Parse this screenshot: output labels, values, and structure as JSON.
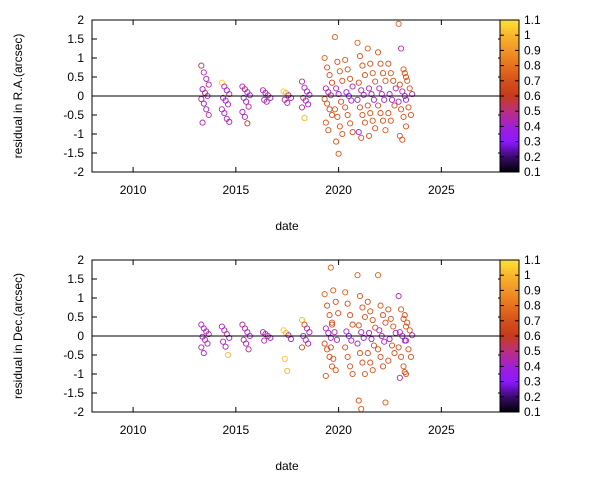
{
  "chart_data": [
    {
      "type": "scatter",
      "xlabel": "date",
      "ylabel": "residual in R.A.(arcsec)",
      "xlim": [
        2008,
        2028
      ],
      "ylim": [
        -2,
        2
      ],
      "x_ticks": [
        2010,
        2015,
        2020,
        2025
      ],
      "x_tick_labels": [
        "2010",
        "2015",
        "2020",
        "2025"
      ],
      "y_ticks": [
        -2,
        -1.5,
        -1,
        -0.5,
        0,
        0.5,
        1,
        1.5,
        2
      ],
      "y_tick_labels": [
        "-2",
        "-1.5",
        "-1",
        "-0.5",
        "0",
        "0.5",
        "1",
        "1.5",
        "2"
      ],
      "colorbar": {
        "range": [
          0.1,
          1.1
        ],
        "tick_values": [
          0.1,
          0.2,
          0.3,
          0.4,
          0.5,
          0.6,
          0.7,
          0.8,
          0.9,
          1,
          1.1
        ],
        "tick_labels": [
          "0.1",
          "0.2",
          "0.3",
          "0.4",
          "0.5",
          "0.6",
          "0.7",
          "0.8",
          "0.9",
          "1",
          "1.1"
        ],
        "colormap": [
          "#000000",
          "#3a0a6e",
          "#8a17ff",
          "#a21fd8",
          "#b8307f",
          "#c43a1c",
          "#d4501a",
          "#e6701c",
          "#f29428",
          "#f7b52c",
          "#ffe033"
        ]
      },
      "groups": [
        {
          "x": 2013.5,
          "ys": [
            0.8,
            0.62,
            0.45,
            0.3,
            0.18,
            0.08,
            0.0,
            -0.08,
            -0.2,
            -0.35,
            -0.5,
            -0.7
          ],
          "cs": [
            0.55,
            0.45,
            0.4,
            0.45,
            0.35,
            0.5,
            0.4,
            0.45,
            0.38,
            0.42,
            0.5,
            0.45
          ]
        },
        {
          "x": 2014.5,
          "ys": [
            0.35,
            0.25,
            0.15,
            0.05,
            -0.05,
            -0.12,
            -0.22,
            -0.35,
            -0.45,
            -0.6,
            -0.68
          ],
          "cs": [
            1.05,
            0.45,
            0.4,
            0.5,
            0.42,
            0.38,
            0.45,
            0.5,
            0.4,
            0.45,
            0.42
          ]
        },
        {
          "x": 2015.5,
          "ys": [
            0.25,
            0.18,
            0.1,
            0.02,
            -0.05,
            -0.15,
            -0.28,
            -0.42,
            -0.55,
            -0.72
          ],
          "cs": [
            0.45,
            0.5,
            0.42,
            0.38,
            0.45,
            0.4,
            0.5,
            0.42,
            0.45,
            0.6
          ]
        },
        {
          "x": 2016.5,
          "ys": [
            0.15,
            0.08,
            0.02,
            -0.05,
            -0.1,
            -0.15
          ],
          "cs": [
            0.45,
            0.42,
            0.5,
            0.4,
            0.45,
            0.42
          ]
        },
        {
          "x": 2017.5,
          "ys": [
            0.12,
            0.08,
            0.02,
            -0.05,
            -0.1,
            -0.18
          ],
          "cs": [
            1.05,
            1.02,
            0.45,
            0.42,
            0.5,
            0.45
          ]
        },
        {
          "x": 2018.4,
          "ys": [
            0.38,
            0.22,
            0.12,
            0.03,
            -0.05,
            -0.12,
            -0.22,
            -0.3,
            -0.58
          ],
          "cs": [
            0.45,
            0.45,
            0.42,
            0.4,
            0.5,
            0.45,
            0.42,
            0.45,
            1.0
          ]
        },
        {
          "x": 2019.5,
          "ys": [
            1.0,
            0.75,
            0.55,
            0.35,
            0.2,
            0.1,
            0.02,
            -0.08,
            -0.2,
            -0.35,
            -0.5,
            -0.7,
            -0.9
          ],
          "cs": [
            0.75,
            0.7,
            0.7,
            0.65,
            0.45,
            0.42,
            0.5,
            0.7,
            0.7,
            0.68,
            0.7,
            0.72,
            0.7
          ]
        },
        {
          "x": 2020.0,
          "ys": [
            1.55,
            0.9,
            0.65,
            0.4,
            0.2,
            0.05,
            -0.15,
            -0.35,
            -0.55,
            -0.8,
            -1.0,
            -1.2,
            -1.52
          ],
          "cs": [
            0.75,
            0.7,
            0.72,
            0.7,
            0.45,
            0.4,
            0.68,
            0.7,
            0.7,
            0.72,
            0.7,
            0.7,
            0.72
          ]
        },
        {
          "x": 2020.5,
          "ys": [
            0.95,
            0.7,
            0.45,
            0.25,
            0.1,
            0.0,
            -0.12,
            -0.3,
            -0.5,
            -0.72,
            -0.95
          ],
          "cs": [
            0.72,
            0.7,
            0.7,
            0.45,
            0.38,
            0.3,
            0.42,
            0.7,
            0.7,
            0.72,
            0.7
          ]
        },
        {
          "x": 2021.1,
          "ys": [
            1.4,
            1.05,
            0.8,
            0.55,
            0.35,
            0.15,
            0.03,
            -0.1,
            -0.3,
            -0.5,
            -0.7,
            -0.95,
            -1.1
          ],
          "cs": [
            0.75,
            0.72,
            0.7,
            0.7,
            0.68,
            0.45,
            0.38,
            0.42,
            0.7,
            0.7,
            0.72,
            0.4,
            0.7
          ]
        },
        {
          "x": 2021.6,
          "ys": [
            1.25,
            0.85,
            0.6,
            0.38,
            0.2,
            0.05,
            -0.1,
            -0.25,
            -0.45,
            -0.65,
            -0.85,
            -1.05
          ],
          "cs": [
            0.75,
            0.7,
            0.72,
            0.7,
            0.45,
            0.42,
            0.4,
            0.7,
            0.7,
            0.72,
            0.7,
            0.7
          ]
        },
        {
          "x": 2022.1,
          "ys": [
            1.15,
            0.85,
            0.6,
            0.4,
            0.2,
            0.05,
            -0.1,
            -0.25,
            -0.45,
            -0.65,
            -0.9
          ],
          "cs": [
            0.72,
            0.7,
            0.7,
            0.72,
            0.45,
            0.4,
            0.42,
            0.7,
            0.7,
            0.7,
            0.72
          ]
        },
        {
          "x": 2022.6,
          "ys": [
            0.85,
            0.6,
            0.4,
            0.2,
            0.05,
            -0.1,
            -0.25,
            -0.45,
            -0.65
          ],
          "cs": [
            0.7,
            0.72,
            0.7,
            0.45,
            0.38,
            0.42,
            0.7,
            0.7,
            0.7
          ]
        },
        {
          "x": 2023.1,
          "ys": [
            1.9,
            1.25,
            0.7,
            0.5,
            0.3,
            0.12,
            0.0,
            -0.15,
            -0.35,
            -0.55,
            -0.8,
            -1.05,
            -1.15
          ],
          "cs": [
            0.75,
            0.45,
            0.72,
            0.7,
            0.7,
            0.45,
            0.38,
            0.42,
            0.7,
            0.7,
            0.72,
            0.7,
            0.7
          ]
        },
        {
          "x": 2023.4,
          "ys": [
            0.6,
            0.4,
            0.2,
            0.05,
            -0.1,
            -0.3,
            -0.5
          ],
          "cs": [
            0.7,
            0.72,
            0.7,
            0.45,
            0.42,
            0.7,
            0.7
          ]
        }
      ]
    },
    {
      "type": "scatter",
      "xlabel": "date",
      "ylabel": "residual in Dec.(arcsec)",
      "xlim": [
        2008,
        2028
      ],
      "ylim": [
        -2,
        2
      ],
      "x_ticks": [
        2010,
        2015,
        2020,
        2025
      ],
      "x_tick_labels": [
        "2010",
        "2015",
        "2020",
        "2025"
      ],
      "y_ticks": [
        -2,
        -1.5,
        -1,
        -0.5,
        0,
        0.5,
        1,
        1.5,
        2
      ],
      "y_tick_labels": [
        "-2",
        "-1.5",
        "-1",
        "-0.5",
        "0",
        "0.5",
        "1",
        "1.5",
        "2"
      ],
      "colorbar": {
        "range": [
          0.1,
          1.1
        ],
        "tick_values": [
          0.1,
          0.2,
          0.3,
          0.4,
          0.5,
          0.6,
          0.7,
          0.8,
          0.9,
          1,
          1.1
        ],
        "tick_labels": [
          "0.1",
          "0.2",
          "0.3",
          "0.4",
          "0.5",
          "0.6",
          "0.7",
          "0.8",
          "0.9",
          "1",
          "1.1"
        ],
        "colormap": [
          "#000000",
          "#3a0a6e",
          "#8a17ff",
          "#a21fd8",
          "#b8307f",
          "#c43a1c",
          "#d4501a",
          "#e6701c",
          "#f29428",
          "#f7b52c",
          "#ffe033"
        ]
      },
      "groups": [
        {
          "x": 2013.5,
          "ys": [
            0.3,
            0.2,
            0.12,
            0.05,
            -0.02,
            -0.1,
            -0.2,
            -0.3,
            -0.45
          ],
          "cs": [
            0.45,
            0.42,
            0.4,
            0.5,
            0.38,
            0.45,
            0.42,
            0.45,
            0.4
          ]
        },
        {
          "x": 2014.5,
          "ys": [
            0.25,
            0.15,
            0.05,
            -0.05,
            -0.15,
            -0.28,
            -0.5
          ],
          "cs": [
            0.45,
            0.42,
            0.5,
            0.4,
            0.45,
            0.42,
            1.0
          ]
        },
        {
          "x": 2015.5,
          "ys": [
            0.3,
            0.2,
            0.1,
            0.0,
            -0.1,
            -0.2,
            -0.35
          ],
          "cs": [
            0.5,
            0.45,
            0.42,
            0.4,
            0.45,
            0.42,
            0.5
          ]
        },
        {
          "x": 2016.5,
          "ys": [
            0.1,
            0.05,
            0.0,
            -0.05,
            -0.12
          ],
          "cs": [
            0.45,
            0.42,
            0.5,
            0.4,
            0.45
          ]
        },
        {
          "x": 2017.5,
          "ys": [
            0.15,
            0.08,
            0.02,
            -0.08,
            -0.6,
            -0.92
          ],
          "cs": [
            1.05,
            1.0,
            0.45,
            0.42,
            1.02,
            1.0
          ]
        },
        {
          "x": 2018.4,
          "ys": [
            0.42,
            0.3,
            0.2,
            0.1,
            0.0,
            -0.1,
            -0.2,
            -0.3
          ],
          "cs": [
            1.0,
            0.7,
            0.45,
            0.42,
            0.4,
            0.45,
            0.42,
            0.7
          ]
        },
        {
          "x": 2019.5,
          "ys": [
            1.1,
            0.8,
            0.55,
            0.35,
            0.2,
            0.08,
            -0.05,
            -0.2,
            -0.35,
            -0.55,
            -0.8,
            -1.05
          ],
          "cs": [
            0.75,
            0.7,
            0.7,
            0.72,
            0.45,
            0.4,
            0.42,
            0.7,
            0.7,
            0.68,
            0.7,
            0.72
          ]
        },
        {
          "x": 2019.8,
          "ys": [
            1.8,
            1.2,
            0.9,
            0.6,
            0.3,
            0.1,
            -0.1,
            -0.3,
            -0.6,
            -0.9
          ],
          "cs": [
            0.75,
            0.72,
            0.7,
            0.7,
            0.7,
            0.45,
            0.42,
            0.7,
            0.7,
            0.72
          ]
        },
        {
          "x": 2020.5,
          "ys": [
            1.15,
            0.85,
            0.55,
            0.3,
            0.12,
            0.0,
            -0.12,
            -0.3,
            -0.55,
            -0.8,
            -1.0
          ],
          "cs": [
            0.75,
            0.7,
            0.7,
            0.7,
            0.42,
            0.3,
            0.4,
            0.7,
            0.7,
            0.72,
            0.7
          ]
        },
        {
          "x": 2021.1,
          "ys": [
            1.6,
            1.05,
            0.75,
            0.5,
            0.28,
            0.1,
            -0.05,
            -0.2,
            -0.45,
            -0.7,
            -1.0,
            -1.7,
            -1.92
          ],
          "cs": [
            0.75,
            0.72,
            0.7,
            0.7,
            0.7,
            0.42,
            0.38,
            0.45,
            0.7,
            0.7,
            0.72,
            0.7,
            0.72
          ]
        },
        {
          "x": 2021.6,
          "ys": [
            0.9,
            0.65,
            0.42,
            0.22,
            0.08,
            -0.08,
            -0.25,
            -0.45,
            -0.7,
            -0.9
          ],
          "cs": [
            0.7,
            0.72,
            0.7,
            0.7,
            0.42,
            0.4,
            0.7,
            0.7,
            0.7,
            0.72
          ]
        },
        {
          "x": 2022.1,
          "ys": [
            1.6,
            0.8,
            0.55,
            0.35,
            0.15,
            0.0,
            -0.15,
            -0.35,
            -0.55,
            -0.8,
            -1.75
          ],
          "cs": [
            0.75,
            0.72,
            0.7,
            0.7,
            0.45,
            0.4,
            0.42,
            0.7,
            0.7,
            0.7,
            0.72
          ]
        },
        {
          "x": 2022.6,
          "ys": [
            0.7,
            0.45,
            0.25,
            0.08,
            -0.08,
            -0.25,
            -0.45,
            -0.65
          ],
          "cs": [
            0.7,
            0.7,
            0.72,
            0.42,
            0.4,
            0.7,
            0.7,
            0.7
          ]
        },
        {
          "x": 2023.1,
          "ys": [
            1.05,
            0.7,
            0.45,
            0.25,
            0.1,
            0.0,
            -0.12,
            -0.3,
            -0.55,
            -0.8,
            -1.0,
            -1.1
          ],
          "cs": [
            0.45,
            0.72,
            0.7,
            0.7,
            0.45,
            0.38,
            0.42,
            0.7,
            0.7,
            0.72,
            0.7,
            0.45
          ]
        },
        {
          "x": 2023.4,
          "ys": [
            0.55,
            0.35,
            0.15,
            0.02,
            -0.12,
            -0.35,
            -0.55,
            -0.95
          ],
          "cs": [
            0.7,
            0.72,
            0.7,
            0.42,
            0.4,
            0.7,
            0.7,
            0.7
          ]
        }
      ]
    }
  ]
}
